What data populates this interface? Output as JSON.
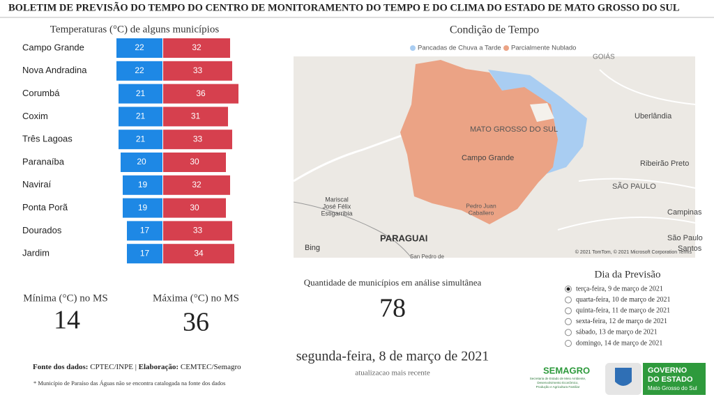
{
  "header": {
    "title": "BOLETIM DE PREVISÃO DO TEMPO DO CENTRO DE MONITORAMENTO DO TEMPO E DO CLIMA DO ESTADO DE MATO GROSSO DO SUL"
  },
  "chart_data": {
    "type": "bar",
    "title": "Temperaturas (°C) de alguns municípios",
    "categories": [
      "Campo Grande",
      "Nova Andradina",
      "Corumbá",
      "Coxim",
      "Três Lagoas",
      "Paranaíba",
      "Naviraí",
      "Ponta Porã",
      "Dourados",
      "Jardim"
    ],
    "series": [
      {
        "color": "#1e88e5",
        "values": [
          22,
          22,
          21,
          21,
          21,
          20,
          19,
          19,
          17,
          17
        ]
      },
      {
        "color": "#d6404e",
        "values": [
          32,
          33,
          36,
          31,
          33,
          30,
          32,
          30,
          33,
          34
        ]
      }
    ]
  },
  "map": {
    "title": "Condição de Tempo",
    "legend": [
      {
        "label": "Pancadas de Chuva a Tarde",
        "color": "#a9cdf2"
      },
      {
        "label": "Parcialmente Nublado",
        "color": "#eba385"
      }
    ],
    "labels": [
      "GOIÁS",
      "Uberlândia",
      "MATO GROSSO DO SUL",
      "Campo Grande",
      "Ribeirão Preto",
      "SÃO PAULO",
      "Mariscal",
      "José Félix",
      "Estigarribia",
      "Pedro Juan",
      "Caballero",
      "PARAGUAI",
      "Campinas",
      "São Paulo",
      "Santos",
      "San Pedro de"
    ],
    "attribution": "Bing",
    "copyright": "© 2021 TomTom, © 2021 Microsoft Corporation  Terms"
  },
  "stats": {
    "min_label": "Mínima (°C) no MS",
    "min": 14,
    "max_label": "Máxima (°C) no MS",
    "max": 36,
    "count_label": "Quantidade de municípios em análise simultânea",
    "count": 78
  },
  "forecast": {
    "title": "Dia da Previsão",
    "options": [
      "terça-feira, 9 de março de 2021",
      "quarta-feira, 10 de março de 2021",
      "quinta-feira, 11 de março de 2021",
      "sexta-feira, 12 de março de 2021",
      "sábado, 13 de março de 2021",
      "domingo, 14 de março de 2021"
    ],
    "selected": 0
  },
  "update": {
    "date": "segunda-feira, 8 de março de 2021",
    "label": "atualizacao mais recente"
  },
  "footer": {
    "source_label": "Fonte dos dados:",
    "source": "CPTEC/INPE",
    "separator": "|",
    "credit_label": "Elaboração:",
    "credit": "CEMTEC/Semagro",
    "note": "* Município de Paraíso das Águas não se encontra catalogada na fonte dos dados"
  },
  "logos": {
    "semagro": "SEMAGRO",
    "semagro_line1": "Secretaria de Estado de Meio Ambiente,",
    "semagro_line2": "Desenvolvimento Econômico,",
    "semagro_line3": "Produção e Agricultura Familiar",
    "gov_line1": "GOVERNO",
    "gov_line2": "DO ESTADO",
    "gov_line3": "Mato Grosso do Sul"
  }
}
